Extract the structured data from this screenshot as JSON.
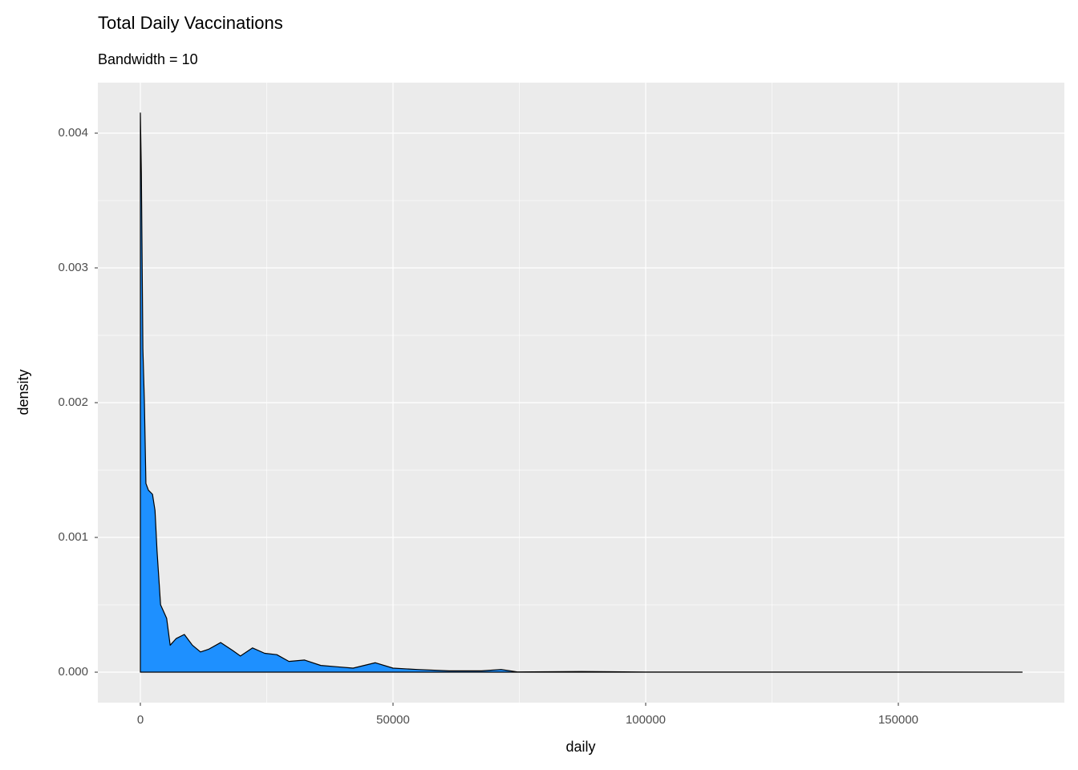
{
  "chart_data": {
    "type": "density",
    "title": "Total Daily Vaccinations",
    "subtitle": "Bandwidth = 10",
    "x_label": "daily",
    "y_label": "density",
    "fill": "#1e90ff",
    "line_color": "#000000",
    "grid": true,
    "x": [
      0,
      200,
      500,
      800,
      1100,
      1600,
      2400,
      2900,
      3300,
      4000,
      4600,
      5200,
      5900,
      7100,
      8700,
      10300,
      11900,
      13500,
      15900,
      18300,
      19800,
      22200,
      24600,
      27000,
      29400,
      32500,
      35700,
      38900,
      42100,
      46500,
      50000,
      54800,
      61100,
      67500,
      71400,
      74600,
      87300,
      100000,
      120000,
      150000,
      174500
    ],
    "values": [
      0.00415,
      0.0037,
      0.0024,
      0.002,
      0.0014,
      0.00135,
      0.00132,
      0.0012,
      0.0009,
      0.0005,
      0.00045,
      0.0004,
      0.0002,
      0.00025,
      0.00028,
      0.0002,
      0.00015,
      0.00017,
      0.00022,
      0.00016,
      0.00012,
      0.00018,
      0.00014,
      0.00013,
      8e-05,
      9e-05,
      5e-05,
      4e-05,
      3e-05,
      7e-05,
      3e-05,
      2e-05,
      1e-05,
      1e-05,
      2e-05,
      2e-06,
      5e-06,
      1e-06,
      1e-06,
      1e-06,
      0
    ],
    "xlim": [
      -8413,
      182857
    ],
    "ylim": [
      -0.000226,
      0.004375
    ],
    "xticks": [
      0,
      50000,
      100000,
      150000
    ],
    "yticks": [
      {
        "value": 0,
        "label": "0.000"
      },
      0.001,
      0.002,
      0.003,
      0.004
    ]
  }
}
